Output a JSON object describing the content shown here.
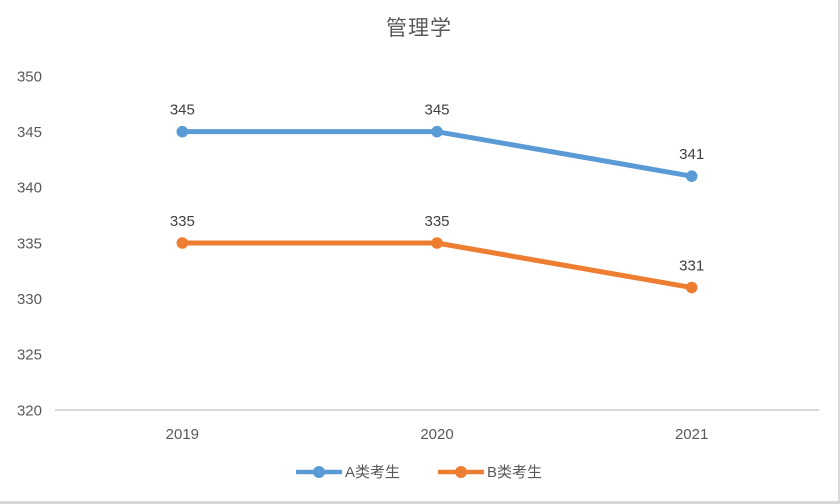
{
  "chart_data": {
    "type": "line",
    "title": "管理学",
    "categories": [
      "2019",
      "2020",
      "2021"
    ],
    "series": [
      {
        "name": "A类考生",
        "color": "#5B9BD5",
        "values": [
          345,
          345,
          341
        ],
        "data_labels": [
          "345",
          "345",
          "341"
        ]
      },
      {
        "name": "B类考生",
        "color": "#ED7D31",
        "values": [
          335,
          335,
          331
        ],
        "data_labels": [
          "335",
          "335",
          "331"
        ]
      }
    ],
    "xlabel": "",
    "ylabel": "",
    "ylim": [
      320,
      350
    ],
    "yticks": [
      320,
      325,
      330,
      335,
      340,
      345,
      350
    ],
    "grid": false,
    "legend_position": "bottom",
    "marker": "circle",
    "data_labels_shown": true
  },
  "colors": {
    "background": "#FFFFFF",
    "axis_line": "#D9D9D9",
    "chart_border": "#D9D9D9",
    "tick_label": "#595959",
    "data_label": "#404040",
    "title": "#595959",
    "legend_label": "#595959"
  }
}
